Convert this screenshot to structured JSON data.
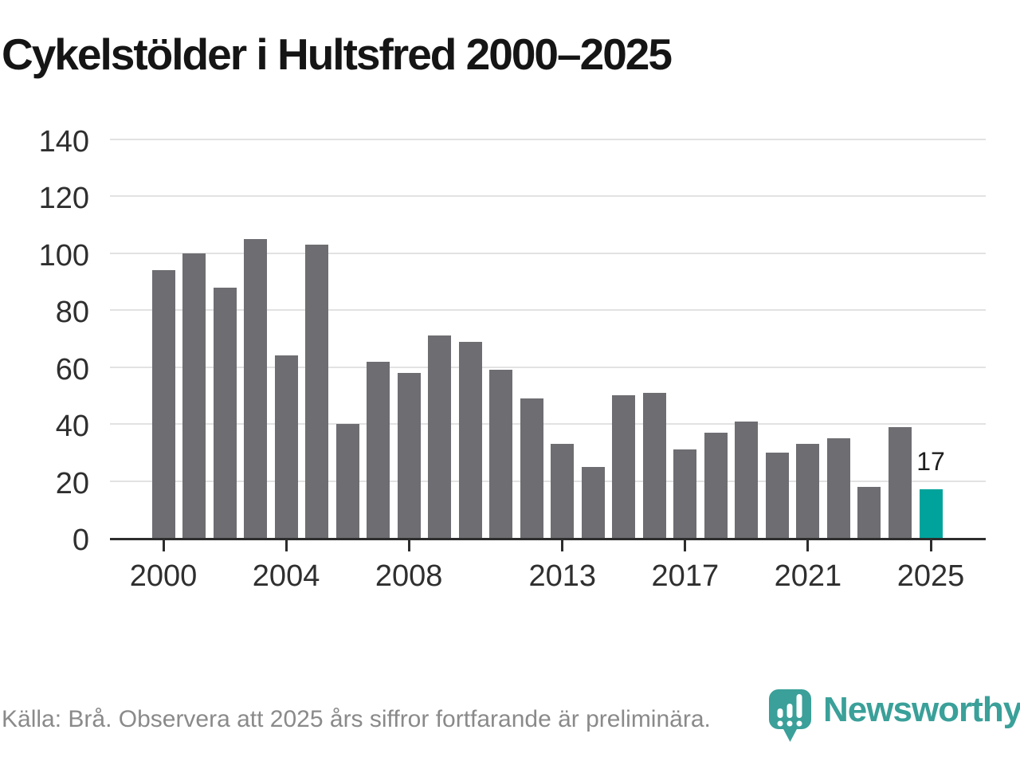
{
  "title": "Cykelstölder i Hultsfred 2000–2025",
  "chart_data": {
    "type": "bar",
    "title": "Cykelstölder i Hultsfred 2000–2025",
    "categories": [
      2000,
      2001,
      2002,
      2003,
      2004,
      2005,
      2006,
      2007,
      2008,
      2009,
      2010,
      2011,
      2012,
      2013,
      2014,
      2015,
      2016,
      2017,
      2018,
      2019,
      2020,
      2021,
      2022,
      2023,
      2024,
      2025
    ],
    "values": [
      94,
      100,
      88,
      105,
      64,
      103,
      40,
      62,
      58,
      71,
      69,
      59,
      49,
      33,
      25,
      50,
      51,
      31,
      37,
      41,
      30,
      33,
      35,
      18,
      39,
      17
    ],
    "xlabel": "",
    "ylabel": "",
    "ylim": [
      0,
      140
    ],
    "y_ticks": [
      0,
      20,
      40,
      60,
      80,
      100,
      120,
      140
    ],
    "x_ticks": [
      2000,
      2004,
      2008,
      2013,
      2017,
      2021,
      2025
    ],
    "grid": "horizontal",
    "legend": "none",
    "bar_color": "#6d6d72",
    "highlight": {
      "category": 2025,
      "color": "#00a39b",
      "label": "17"
    }
  },
  "footer": {
    "source_note": "Källa: Brå. Observera att 2025 års siffror fortfarande är preliminära."
  },
  "branding": {
    "wordmark": "Newsworthy",
    "icon": "newsworthy-pin-chart-icon",
    "color": "#3aa099"
  }
}
